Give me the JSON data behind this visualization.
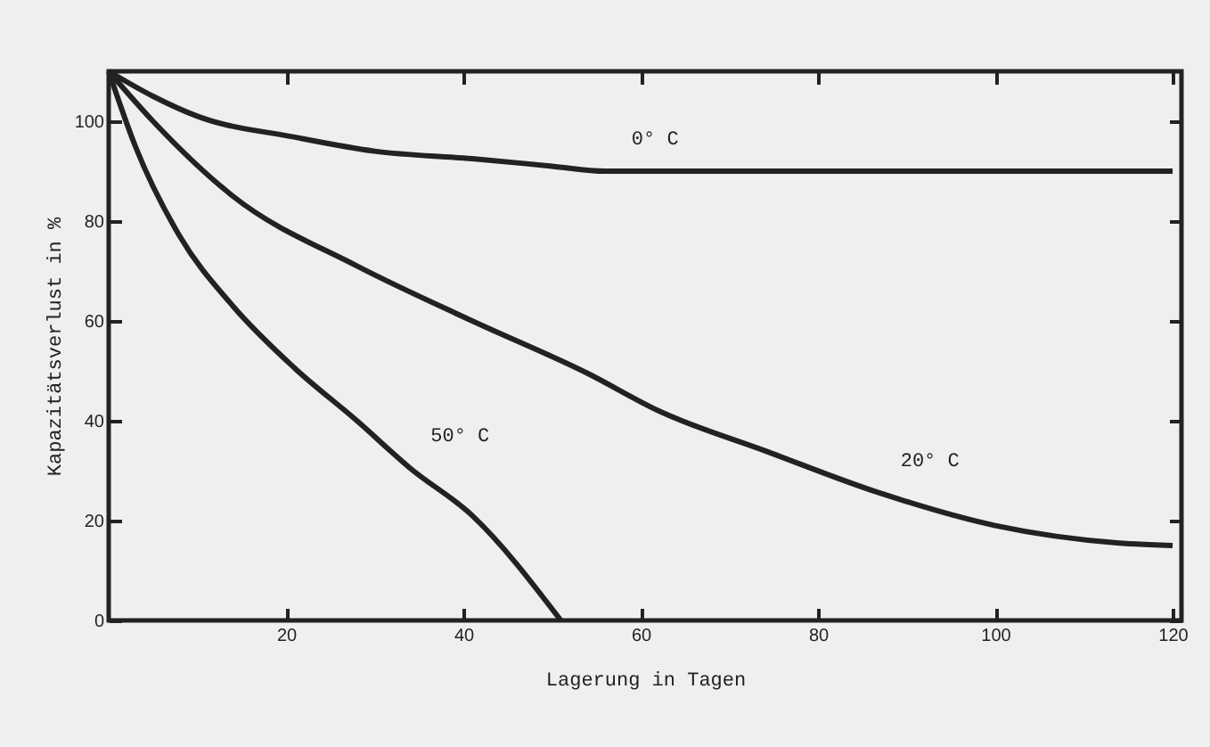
{
  "chart_data": {
    "type": "line",
    "xlabel": "Lagerung in Tagen",
    "ylabel": "Kapazitätsverlust in %",
    "xlim": [
      0,
      121
    ],
    "ylim": [
      0,
      110
    ],
    "xticks": [
      20,
      40,
      60,
      80,
      100,
      120
    ],
    "yticks": [
      0,
      20,
      40,
      60,
      80,
      100
    ],
    "grid": false,
    "legend": false,
    "marker": "none",
    "line_style": "solid",
    "series": [
      {
        "name": "0° C",
        "color": "#222222",
        "x": [
          0,
          5,
          10,
          21,
          30,
          41,
          50,
          56,
          58,
          120
        ],
        "values": [
          110,
          105,
          101,
          96.8,
          94,
          92.5,
          91,
          90,
          90,
          90
        ]
      },
      {
        "name": "20° C",
        "color": "#222222",
        "x": [
          0,
          5,
          14,
          28,
          41,
          54,
          62,
          74,
          87,
          100,
          114,
          120
        ],
        "values": [
          110,
          100,
          85,
          71,
          60,
          49.5,
          42,
          34,
          25.5,
          19,
          15.5,
          15
        ]
      },
      {
        "name": "50° C",
        "color": "#222222",
        "x": [
          0,
          3,
          8,
          14,
          21,
          28,
          34,
          41,
          51
        ],
        "values": [
          110,
          95,
          77,
          63,
          50.5,
          40,
          30.5,
          21,
          0
        ]
      }
    ]
  }
}
